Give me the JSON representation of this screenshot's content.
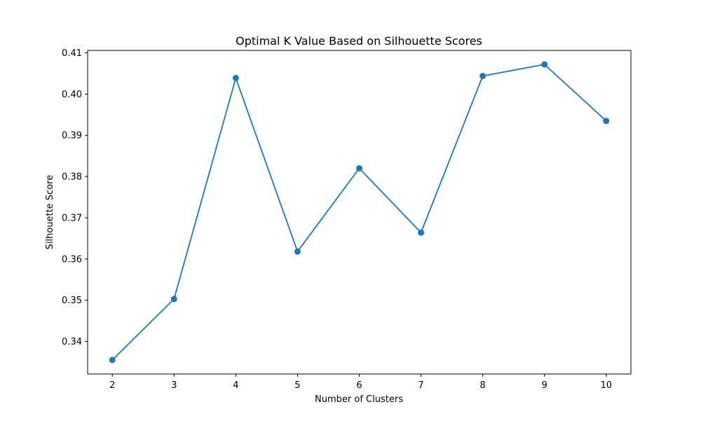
{
  "chart_data": {
    "type": "line",
    "title": "Optimal K Value Based on Silhouette Scores",
    "xlabel": "Number of Clusters",
    "ylabel": "Silhouette Score",
    "x": [
      2,
      3,
      4,
      5,
      6,
      7,
      8,
      9,
      10
    ],
    "series": [
      {
        "values": [
          0.3355,
          0.3503,
          0.4039,
          0.3618,
          0.382,
          0.3664,
          0.4044,
          0.4072,
          0.3935
        ],
        "color": "#1f77b4",
        "marker": "circle"
      }
    ],
    "xticks": [
      2,
      3,
      4,
      5,
      6,
      7,
      8,
      9,
      10
    ],
    "yticks": [
      0.34,
      0.35,
      0.36,
      0.37,
      0.38,
      0.39,
      0.4,
      0.41
    ],
    "ytick_labels": [
      "0.34",
      "0.35",
      "0.36",
      "0.37",
      "0.38",
      "0.39",
      "0.40",
      "0.41"
    ],
    "xlim": [
      1.6,
      10.4
    ],
    "ylim": [
      0.3321,
      0.4106
    ],
    "grid": false,
    "legend": false
  }
}
